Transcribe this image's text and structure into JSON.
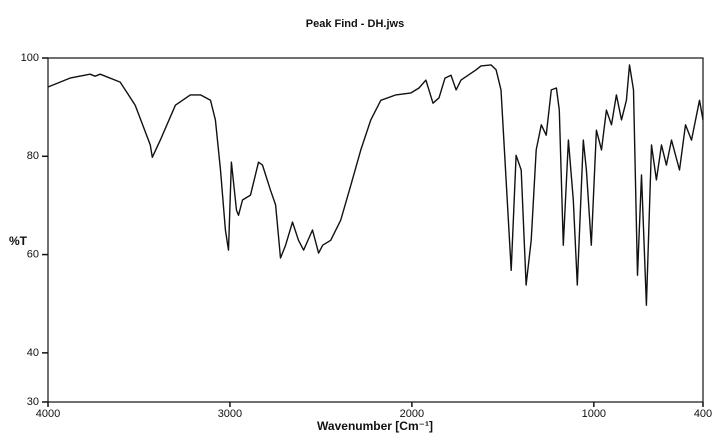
{
  "chart_data": {
    "type": "line",
    "title": "Peak Find - DH.jws",
    "xlabel": "Wavenumber [Cm⁻¹]",
    "ylabel": "%T",
    "color": "#111111",
    "xlim": [
      4000,
      400
    ],
    "ylim": [
      30,
      100
    ],
    "xticks": [
      4000,
      3000,
      2000,
      1000,
      400
    ],
    "yticks": [
      100,
      80,
      60,
      40,
      30
    ],
    "x": [
      4000,
      3879,
      3769,
      3741,
      3713,
      3603,
      3521,
      3438,
      3427,
      3383,
      3300,
      3218,
      3162,
      3107,
      3080,
      3052,
      3025,
      3008,
      2992,
      2964,
      2953,
      2931,
      2887,
      2843,
      2821,
      2777,
      2749,
      2722,
      2694,
      2656,
      2623,
      2595,
      2546,
      2513,
      2490,
      2446,
      2391,
      2336,
      2281,
      2226,
      2171,
      2088,
      2005,
      1961,
      1923,
      1884,
      1851,
      1818,
      1785,
      1757,
      1730,
      1647,
      1620,
      1565,
      1537,
      1510,
      1482,
      1454,
      1427,
      1399,
      1372,
      1344,
      1317,
      1289,
      1262,
      1234,
      1206,
      1190,
      1168,
      1140,
      1113,
      1091,
      1058,
      1041,
      1014,
      986,
      958,
      931,
      903,
      876,
      848,
      821,
      804,
      782,
      760,
      738,
      711,
      683,
      656,
      628,
      601,
      573,
      529,
      496,
      463,
      419,
      400
    ],
    "values": [
      94.1,
      95.9,
      96.7,
      96.3,
      96.7,
      95.1,
      90.4,
      82.3,
      79.8,
      83.3,
      90.4,
      92.5,
      92.5,
      91.4,
      87.4,
      77.2,
      65.0,
      60.9,
      78.8,
      69.0,
      68.0,
      71.1,
      72.1,
      78.8,
      78.2,
      73.1,
      70.1,
      59.3,
      61.9,
      66.6,
      62.9,
      60.9,
      65.0,
      60.3,
      61.9,
      62.9,
      67.0,
      74.1,
      81.3,
      87.4,
      91.4,
      92.5,
      92.9,
      93.9,
      95.5,
      90.8,
      91.9,
      95.9,
      96.5,
      93.5,
      95.5,
      97.6,
      98.4,
      98.6,
      97.6,
      93.5,
      75.2,
      56.8,
      80.2,
      77.2,
      53.8,
      62.9,
      81.3,
      86.4,
      84.3,
      93.5,
      93.9,
      89.4,
      61.9,
      83.3,
      71.1,
      53.8,
      83.3,
      77.2,
      61.9,
      85.3,
      81.3,
      89.4,
      86.4,
      92.5,
      87.4,
      91.4,
      98.6,
      93.5,
      55.8,
      76.2,
      49.7,
      82.3,
      75.2,
      82.3,
      78.2,
      83.3,
      77.2,
      86.4,
      83.3,
      91.4,
      87.4
    ]
  }
}
